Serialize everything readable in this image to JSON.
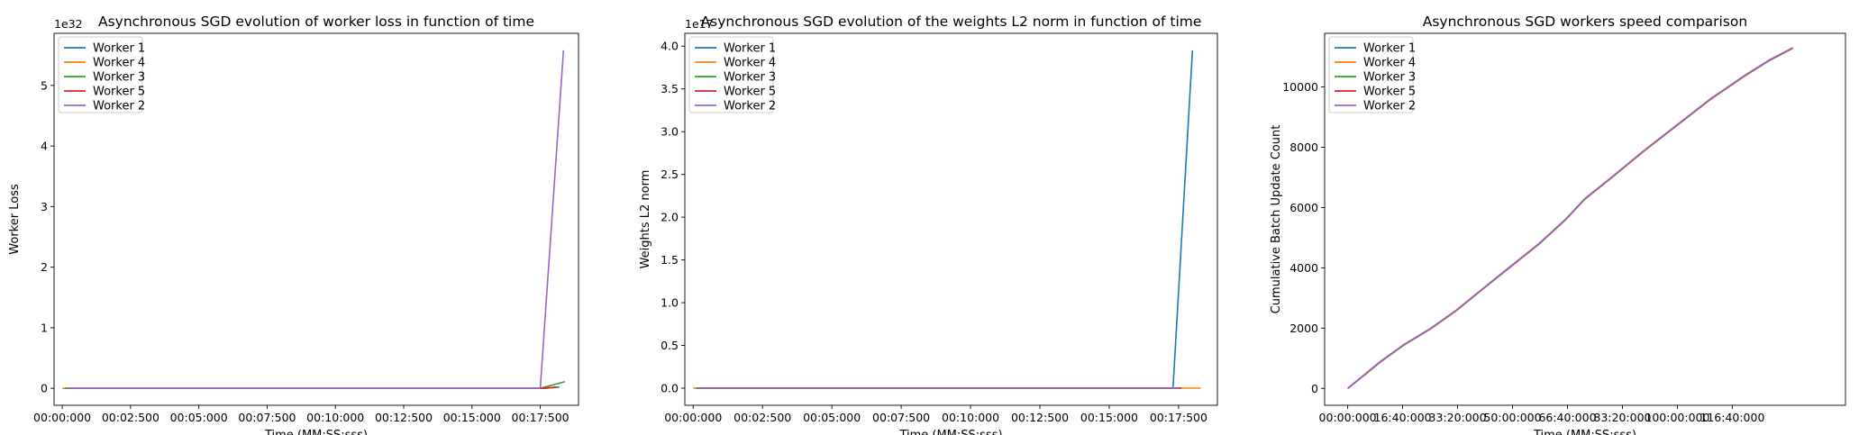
{
  "chart_data": [
    {
      "type": "line",
      "title": "Asynchronous SGD evolution of worker loss in function of time",
      "xlabel": "Time (MM:SS:sss)",
      "ylabel": "Worker Loss",
      "y_offset_label": "1e32",
      "xlim": [
        -0.3,
        18.9
      ],
      "ylim": [
        -0.28,
        5.86
      ],
      "xticks": [
        0,
        2.5,
        5,
        7.5,
        10,
        12.5,
        15,
        17.5
      ],
      "xtick_labels": [
        "00:00:000",
        "00:02:500",
        "00:05:000",
        "00:07:500",
        "00:10:000",
        "00:12:500",
        "00:15:000",
        "00:17:500"
      ],
      "yticks": [
        0,
        1,
        2,
        3,
        4,
        5
      ],
      "ytick_labels": [
        "0",
        "1",
        "2",
        "3",
        "4",
        "5"
      ],
      "legend_loc": "upper left",
      "series": [
        {
          "name": "Worker 1",
          "color": "#1f77b4",
          "x": [
            0.1,
            17.6,
            18.2
          ],
          "y": [
            0,
            0,
            0.02
          ]
        },
        {
          "name": "Worker 4",
          "color": "#ff7f0e",
          "x": [
            0.0,
            17.6,
            18.0
          ],
          "y": [
            0,
            0,
            0.01
          ]
        },
        {
          "name": "Worker 3",
          "color": "#2ca02c",
          "x": [
            0.1,
            17.5,
            18.4
          ],
          "y": [
            0,
            0,
            0.11
          ]
        },
        {
          "name": "Worker 5",
          "color": "#d62728",
          "x": [
            0.2,
            17.6,
            18.1
          ],
          "y": [
            0,
            0,
            0.02
          ]
        },
        {
          "name": "Worker 2",
          "color": "#9467bd",
          "x": [
            0.2,
            17.5,
            18.35
          ],
          "y": [
            0,
            0,
            5.58
          ]
        }
      ]
    },
    {
      "type": "line",
      "title": "Asynchronous SGD evolution of the weights L2 norm in function of time",
      "xlabel": "Time (MM:SS:sss)",
      "ylabel": "Weights L2 norm",
      "y_offset_label": "1e17",
      "xlim": [
        -0.3,
        18.9
      ],
      "ylim": [
        -0.2,
        4.15
      ],
      "xticks": [
        0,
        2.5,
        5,
        7.5,
        10,
        12.5,
        15,
        17.5
      ],
      "xtick_labels": [
        "00:00:000",
        "00:02:500",
        "00:05:000",
        "00:07:500",
        "00:10:000",
        "00:12:500",
        "00:15:000",
        "00:17:500"
      ],
      "yticks": [
        0,
        0.5,
        1.0,
        1.5,
        2.0,
        2.5,
        3.0,
        3.5,
        4.0
      ],
      "ytick_labels": [
        "0.0",
        "0.5",
        "1.0",
        "1.5",
        "2.0",
        "2.5",
        "3.0",
        "3.5",
        "4.0"
      ],
      "legend_loc": "upper left",
      "series": [
        {
          "name": "Worker 1",
          "color": "#1f77b4",
          "x": [
            0.1,
            17.3,
            18.0
          ],
          "y": [
            0,
            0,
            3.95
          ]
        },
        {
          "name": "Worker 4",
          "color": "#ff7f0e",
          "x": [
            0.0,
            17.6,
            18.3
          ],
          "y": [
            0,
            0,
            0.0
          ]
        },
        {
          "name": "Worker 3",
          "color": "#2ca02c",
          "x": [
            0.1,
            17.5
          ],
          "y": [
            0,
            0
          ]
        },
        {
          "name": "Worker 5",
          "color": "#d62728",
          "x": [
            0.2,
            17.6
          ],
          "y": [
            0,
            0
          ]
        },
        {
          "name": "Worker 2",
          "color": "#9467bd",
          "x": [
            0.2,
            17.5
          ],
          "y": [
            0,
            0
          ]
        }
      ]
    },
    {
      "type": "line",
      "title": "Asynchronous SGD workers speed comparison",
      "xlabel": "Time (MM:SS:sss)",
      "ylabel": "Cumulative Batch Update Count",
      "xlim": [
        -7,
        151
      ],
      "ylim": [
        -560,
        11780
      ],
      "xticks": [
        0,
        16.667,
        33.333,
        50,
        66.667,
        83.333,
        100,
        116.667
      ],
      "xtick_labels": [
        "00:00:000",
        "16:40:000",
        "33:20:000",
        "50:00:000",
        "66:40:000",
        "83:20:000",
        "100:00:000",
        "116:40:000"
      ],
      "yticks": [
        0,
        2000,
        4000,
        6000,
        8000,
        10000
      ],
      "ytick_labels": [
        "0",
        "2000",
        "4000",
        "6000",
        "8000",
        "10000"
      ],
      "legend_loc": "upper left",
      "series": [
        {
          "name": "Worker 1",
          "color": "#1f77b4",
          "x": [
            0,
            5,
            10,
            17,
            25,
            33,
            42,
            50,
            58,
            66,
            72,
            80,
            90,
            100,
            110,
            120,
            128,
            135
          ],
          "y": [
            0,
            450,
            900,
            1450,
            1980,
            2600,
            3400,
            4100,
            4800,
            5600,
            6300,
            7000,
            7900,
            8750,
            9600,
            10350,
            10900,
            11300
          ]
        },
        {
          "name": "Worker 4",
          "color": "#ff7f0e",
          "x": [
            0,
            5,
            10,
            17,
            25,
            33,
            42,
            50,
            58,
            66,
            72,
            80,
            90,
            100,
            110,
            120,
            128,
            135
          ],
          "y": [
            0,
            430,
            880,
            1430,
            1960,
            2580,
            3380,
            4080,
            4780,
            5580,
            6280,
            6980,
            7880,
            8730,
            9580,
            10330,
            10880,
            11280
          ]
        },
        {
          "name": "Worker 3",
          "color": "#2ca02c",
          "x": [
            0,
            5,
            10,
            17,
            25,
            33,
            42,
            50,
            58,
            66,
            72,
            80,
            90,
            100,
            110,
            120,
            128,
            135
          ],
          "y": [
            0,
            440,
            890,
            1440,
            1970,
            2590,
            3390,
            4090,
            4790,
            5590,
            6290,
            6990,
            7890,
            8740,
            9590,
            10340,
            10890,
            11290
          ]
        },
        {
          "name": "Worker 5",
          "color": "#d62728",
          "x": [
            0,
            5,
            10,
            17,
            25,
            33,
            42,
            50,
            58,
            66,
            72,
            80,
            90,
            100,
            110,
            120,
            128,
            135
          ],
          "y": [
            0,
            445,
            895,
            1445,
            1975,
            2595,
            3395,
            4095,
            4795,
            5595,
            6295,
            6995,
            7895,
            8745,
            9595,
            10345,
            10895,
            11295
          ]
        },
        {
          "name": "Worker 2",
          "color": "#9467bd",
          "x": [
            0,
            5,
            10,
            17,
            25,
            33,
            42,
            50,
            58,
            66,
            72,
            80,
            90,
            100,
            110,
            120,
            128,
            135
          ],
          "y": [
            0,
            440,
            890,
            1440,
            1970,
            2590,
            3390,
            4090,
            4790,
            5590,
            6300,
            7000,
            7900,
            8750,
            9600,
            10350,
            10900,
            11300
          ]
        }
      ]
    }
  ]
}
